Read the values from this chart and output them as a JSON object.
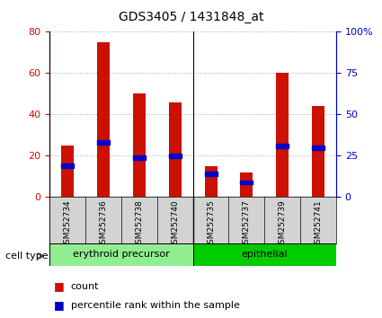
{
  "title": "GDS3405 / 1431848_at",
  "samples": [
    "GSM252734",
    "GSM252736",
    "GSM252738",
    "GSM252740",
    "GSM252735",
    "GSM252737",
    "GSM252739",
    "GSM252741"
  ],
  "counts": [
    25,
    75,
    50,
    46,
    15,
    12,
    60,
    44
  ],
  "percentiles": [
    19,
    33,
    24,
    25,
    14,
    9,
    31,
    30
  ],
  "groups": [
    {
      "label": "erythroid precursor",
      "indices": [
        0,
        1,
        2,
        3
      ],
      "color": "#90ee90"
    },
    {
      "label": "epithelial",
      "indices": [
        4,
        5,
        6,
        7
      ],
      "color": "#00cc00"
    }
  ],
  "group_divider": 3.5,
  "ylim_left": [
    0,
    80
  ],
  "ylim_right": [
    0,
    100
  ],
  "yticks_left": [
    0,
    20,
    40,
    60,
    80
  ],
  "yticks_right": [
    0,
    25,
    50,
    75,
    100
  ],
  "ytick_labels_right": [
    "0",
    "25",
    "50",
    "75",
    "100%"
  ],
  "bar_color": "#cc1100",
  "blue_color": "#0000cc",
  "bar_width": 0.35,
  "grid_color": "#aaaaaa",
  "tick_area_color": "#d3d3d3",
  "left_axis_color": "#cc1100",
  "right_axis_color": "#0000cc",
  "legend_count_label": "count",
  "legend_pct_label": "percentile rank within the sample",
  "cell_type_label": "cell type",
  "figsize": [
    4.25,
    3.54
  ],
  "dpi": 100
}
